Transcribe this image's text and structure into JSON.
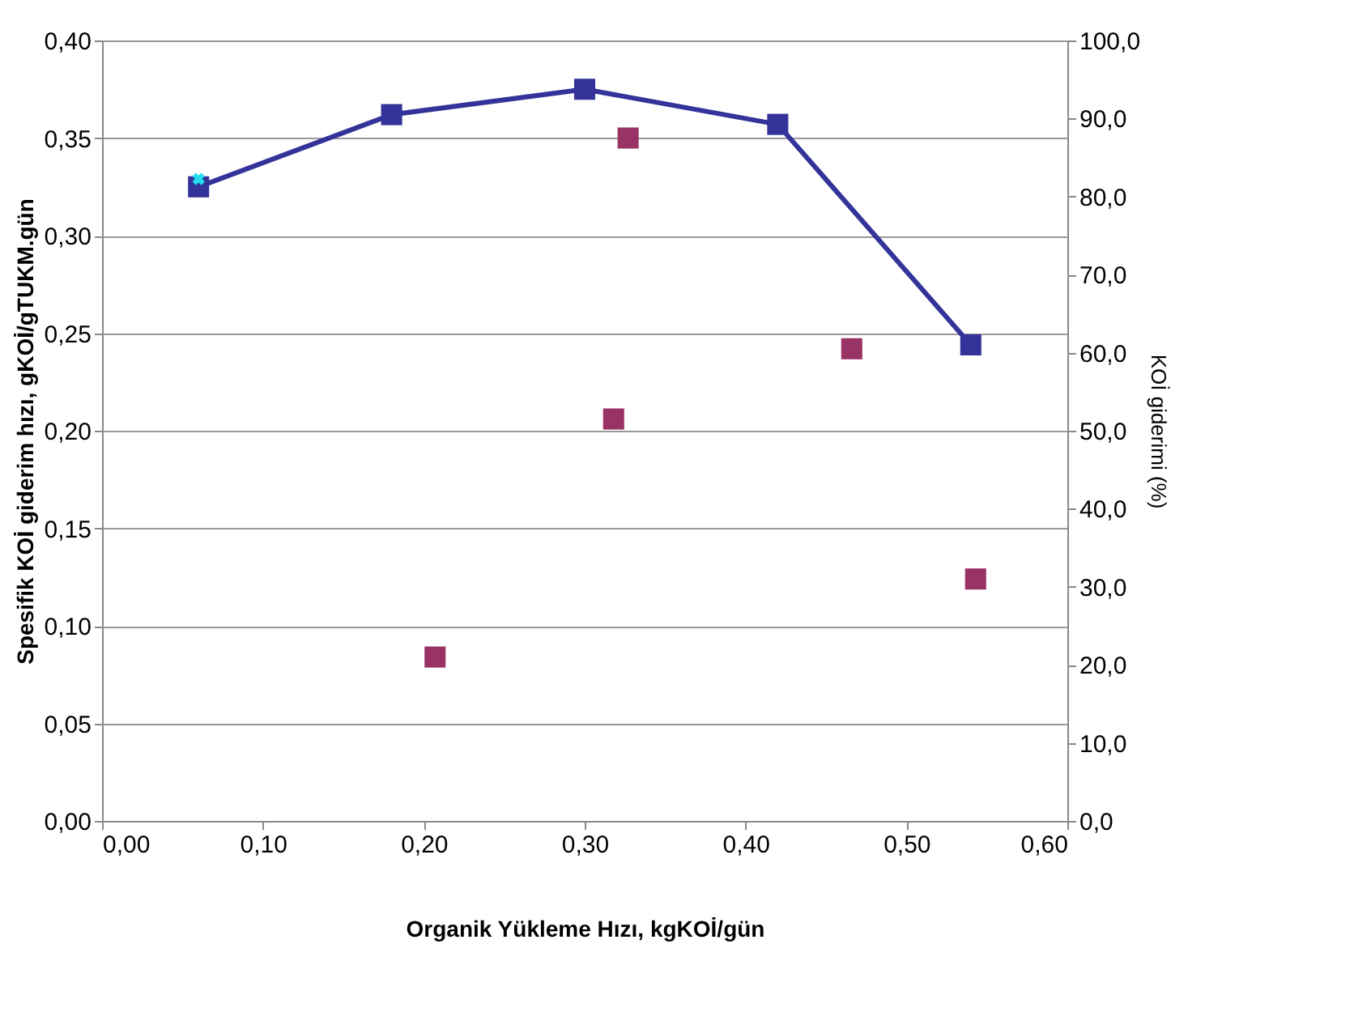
{
  "chart_data": {
    "type": "line",
    "xlabel": "Organik Yükleme Hızı, kgKOİ/gün",
    "ylabel": "Spesifik KOİ giderim hızı, gKOİ/gTUKM.gün",
    "y2label": "KOİ giderimi (%)",
    "series": [
      {
        "color": "#333399",
        "marker": "square",
        "x": [
          0.06,
          0.18,
          0.3,
          0.42,
          0.54
        ],
        "values": [
          0.325,
          0.362,
          0.375,
          0.357,
          0.244
        ]
      },
      {
        "type": "scatter",
        "color": "#993366",
        "marker": "square",
        "axis": "y2",
        "x": [
          0.207,
          0.318,
          0.327,
          0.466,
          0.543
        ],
        "values": [
          21.0,
          51.5,
          87.5,
          60.5,
          31.0
        ]
      },
      {
        "type": "scatter",
        "color": "#22ddee",
        "marker": "cross",
        "x": [
          0.06
        ],
        "values": [
          0.329
        ]
      }
    ],
    "xlim": [
      0,
      0.6
    ],
    "xticks": [
      {
        "value": 0,
        "label": "0,00"
      },
      {
        "value": 0.1,
        "label": "0,10"
      },
      {
        "value": 0.2,
        "label": "0,20"
      },
      {
        "value": 0.3,
        "label": "0,30"
      },
      {
        "value": 0.4,
        "label": "0,40"
      },
      {
        "value": 0.5,
        "label": "0,50"
      },
      {
        "value": 0.6,
        "label": "0,60"
      }
    ],
    "ylim": [
      0,
      0.4
    ],
    "yticks": [
      {
        "value": 0,
        "label": "0,00"
      },
      {
        "value": 0.05,
        "label": "0,05"
      },
      {
        "value": 0.1,
        "label": "0,10"
      },
      {
        "value": 0.15,
        "label": "0,15"
      },
      {
        "value": 0.2,
        "label": "0,20"
      },
      {
        "value": 0.25,
        "label": "0,25"
      },
      {
        "value": 0.3,
        "label": "0,30"
      },
      {
        "value": 0.35,
        "label": "0,35"
      },
      {
        "value": 0.4,
        "label": "0,40"
      }
    ],
    "y2lim": [
      0,
      100
    ],
    "y2ticks": [
      {
        "value": 0,
        "label": "0,0"
      },
      {
        "value": 10,
        "label": "10,0"
      },
      {
        "value": 20,
        "label": "20,0"
      },
      {
        "value": 30,
        "label": "30,0"
      },
      {
        "value": 40,
        "label": "40,0"
      },
      {
        "value": 50,
        "label": "50,0"
      },
      {
        "value": 60,
        "label": "60,0"
      },
      {
        "value": 70,
        "label": "70,0"
      },
      {
        "value": 80,
        "label": "80,0"
      },
      {
        "value": 90,
        "label": "90,0"
      },
      {
        "value": 100,
        "label": "100,0"
      }
    ],
    "grid": "y"
  }
}
